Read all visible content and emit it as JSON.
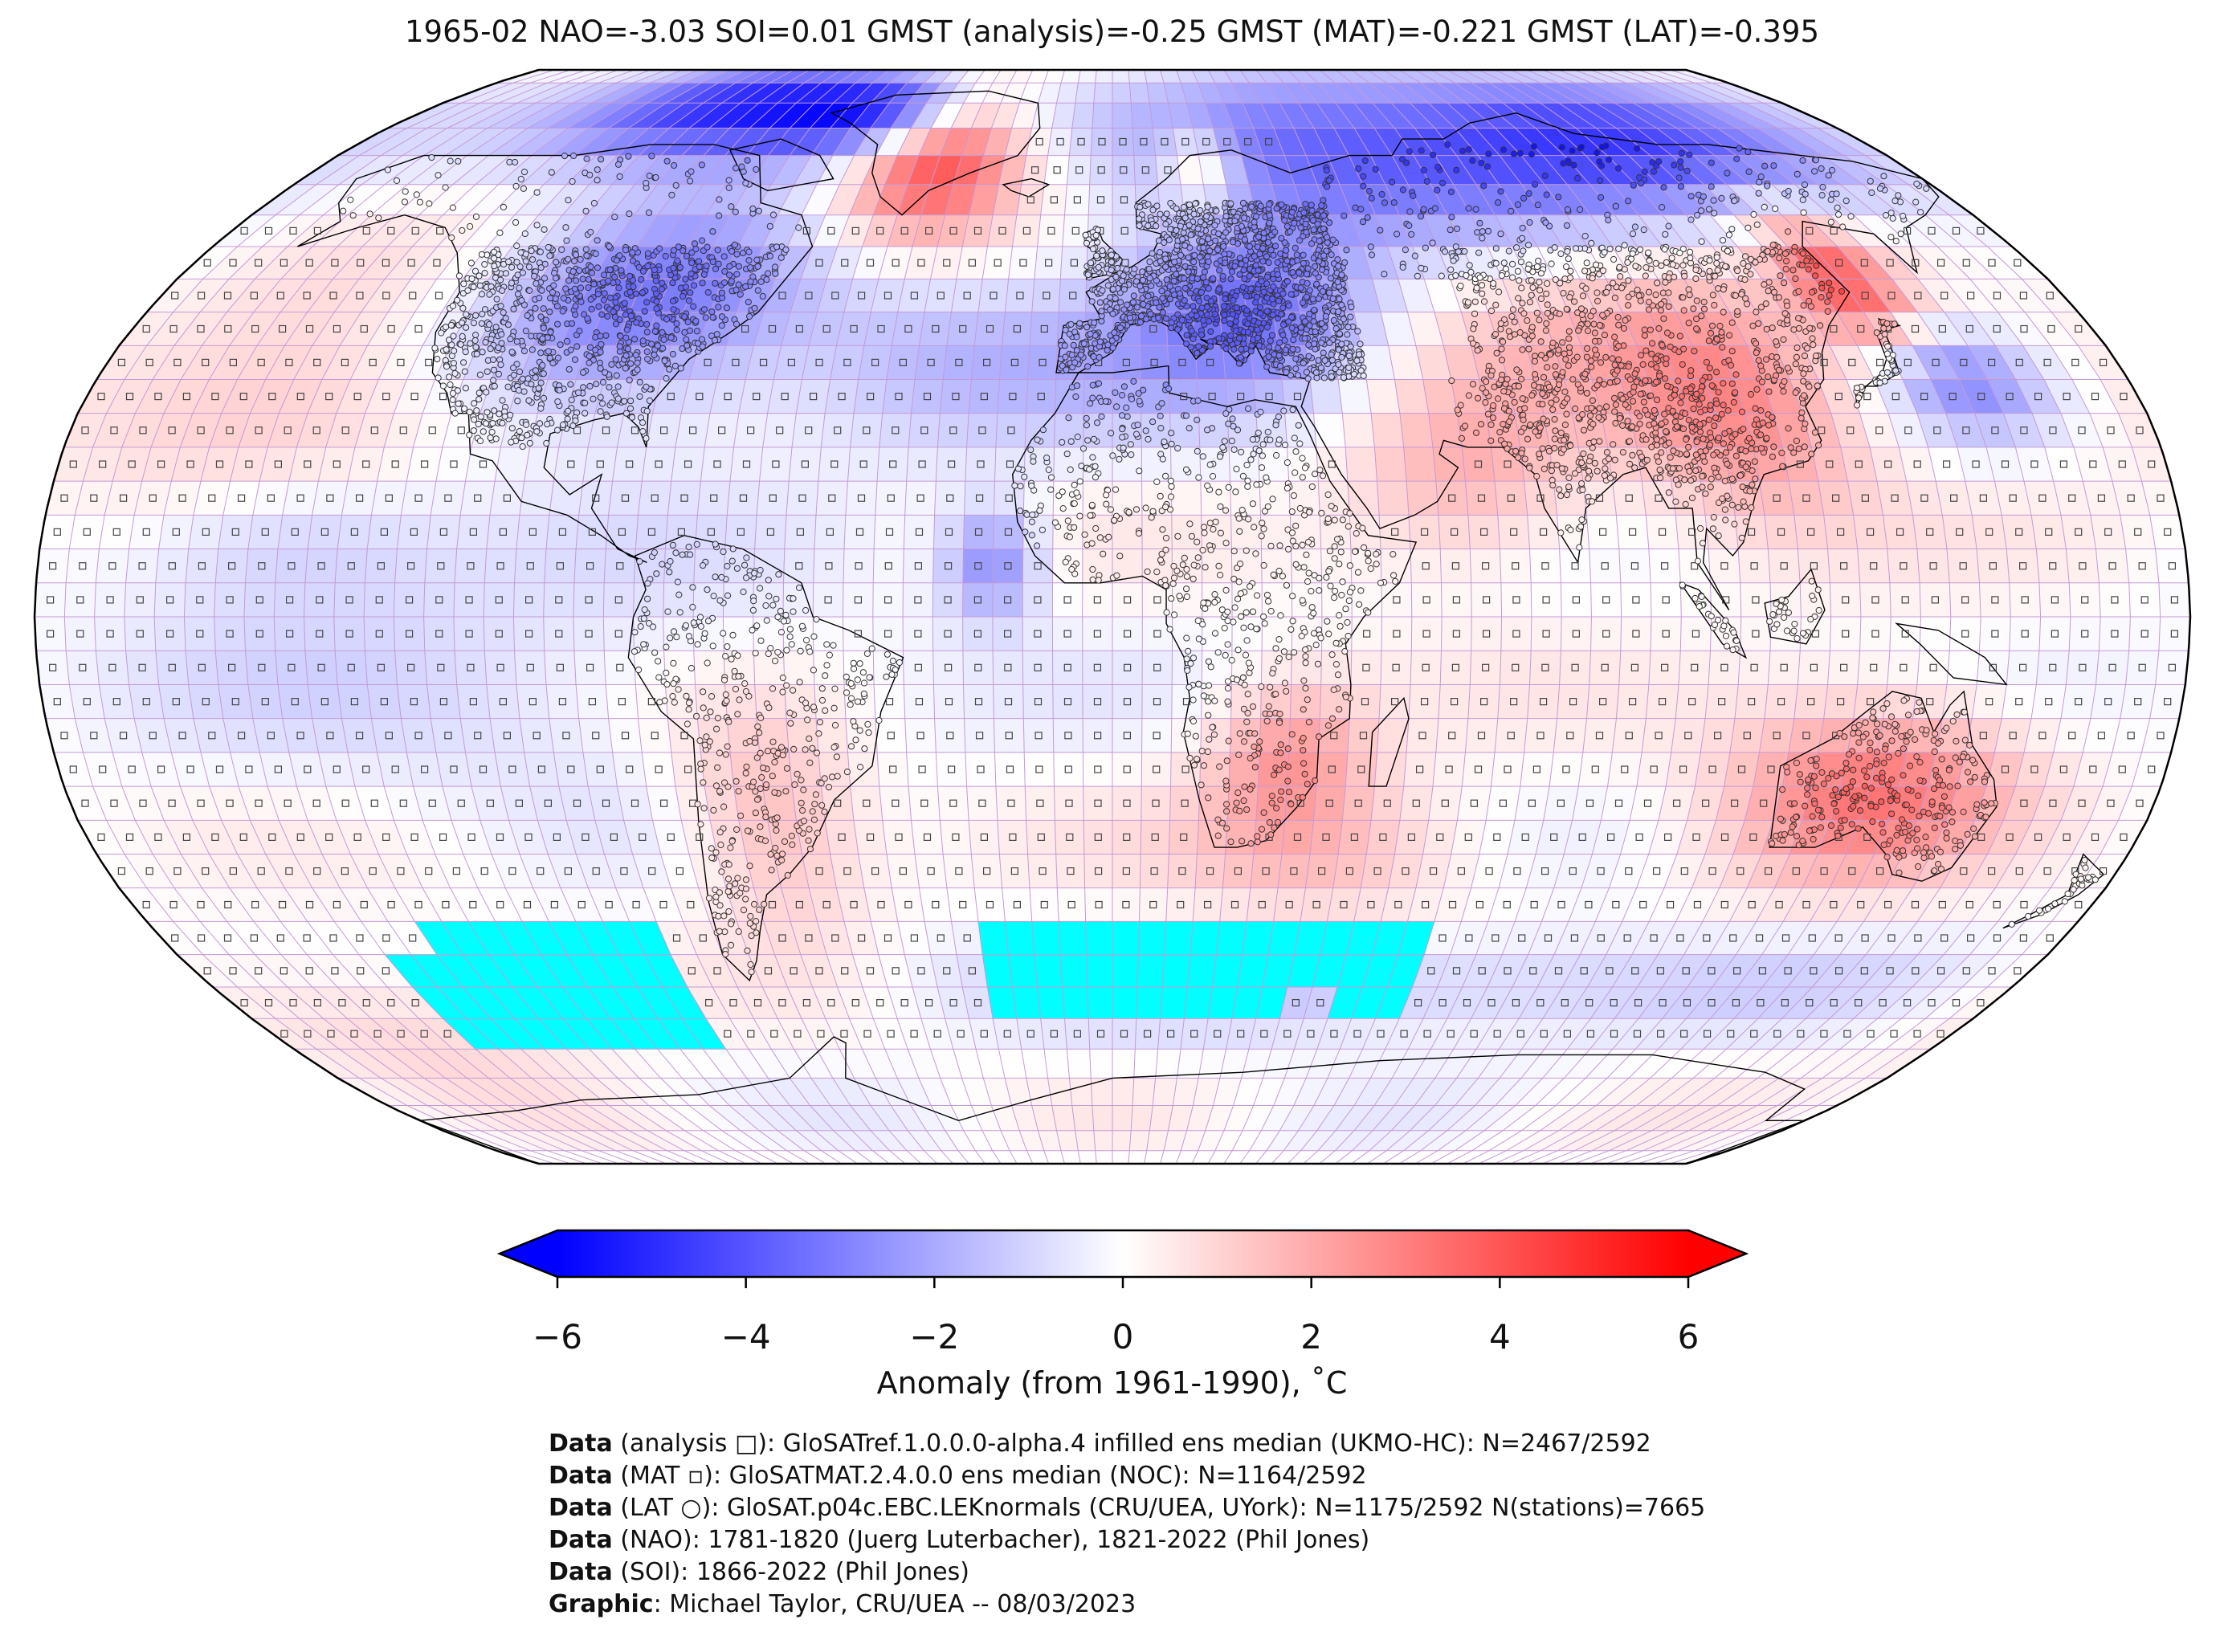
{
  "title": "1965-02 NAO=-3.03 SOI=0.01 GMST (analysis)=-0.25 GMST (MAT)=-0.221 GMST (LAT)=-0.395",
  "map": {
    "projection": "Robinson",
    "colormap": "bwr",
    "missing_color": "#00ffff",
    "grid_line_color": "#c49ad6",
    "coastline_color": "#000000",
    "markers": {
      "analysis": "square",
      "mat": "small-square",
      "lat": "circle"
    }
  },
  "colorbar": {
    "min": -6,
    "max": 6,
    "ticks": [
      "−6",
      "−4",
      "−2",
      "0",
      "2",
      "4",
      "6"
    ],
    "tick_values": [
      -6,
      -4,
      -2,
      0,
      2,
      4,
      6
    ],
    "label": "Anomaly (from 1961-1990), ˚C",
    "extend": "both",
    "colors": {
      "low": "#0000ff",
      "mid": "#ffffff",
      "high": "#ff0000"
    }
  },
  "credits": [
    {
      "label": "Data",
      "text": " (analysis □): GloSATref.1.0.0.0-alpha.4 infilled ens median (UKMO-HC): N=2467/2592"
    },
    {
      "label": "Data",
      "text": " (MAT ▫): GloSATMAT.2.4.0.0 ens median (NOC): N=1164/2592"
    },
    {
      "label": "Data",
      "text": " (LAT ○): GloSAT.p04c.EBC.LEKnormals (CRU/UEA, UYork): N=1175/2592 N(stations)=7665"
    },
    {
      "label": "Data",
      "text": " (NAO): 1781-1820 (Juerg Luterbacher), 1821-2022 (Phil Jones)"
    },
    {
      "label": "Data",
      "text": " (SOI): 1866-2022 (Phil Jones)"
    },
    {
      "label": "Graphic",
      "text": ": Michael Taylor, CRU/UEA -- 08/03/2023"
    }
  ]
}
